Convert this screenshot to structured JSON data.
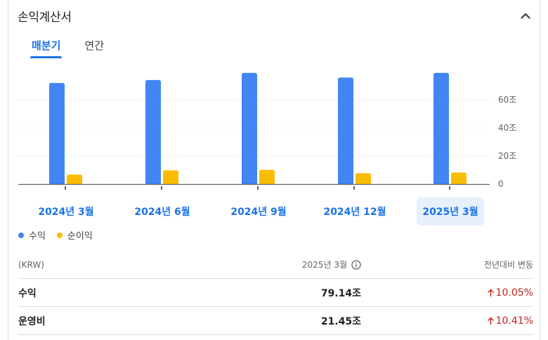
{
  "title": "손익계산서",
  "tabs": [
    {
      "label": "매분기",
      "active": true
    },
    {
      "label": "연간",
      "active": false
    }
  ],
  "chart_data": {
    "type": "bar",
    "categories": [
      "2024년 3월",
      "2024년 6월",
      "2024년 9월",
      "2024년 12월",
      "2025년 3월"
    ],
    "series": [
      {
        "name": "수익",
        "color": "#4285f4",
        "values": [
          71.92,
          74.07,
          79.1,
          75.79,
          79.14
        ]
      },
      {
        "name": "순이익",
        "color": "#fbbc04",
        "values": [
          6.75,
          9.84,
          10.1,
          7.75,
          8.22
        ]
      }
    ],
    "yticks": [
      0,
      20,
      40,
      60
    ],
    "ytick_labels": [
      "0",
      "20조",
      "40조",
      "60조"
    ],
    "ylim": [
      0,
      80
    ],
    "selected_index": 4
  },
  "legend": [
    "수익",
    "순이익"
  ],
  "table": {
    "currency": "(KRW)",
    "period_header": "2025년 3월",
    "change_header": "전년대비 변동",
    "rows": [
      {
        "label": "수익",
        "value": "79.14조",
        "change": "10.05%"
      },
      {
        "label": "운영비",
        "value": "21.45조",
        "change": "10.41%"
      }
    ]
  }
}
